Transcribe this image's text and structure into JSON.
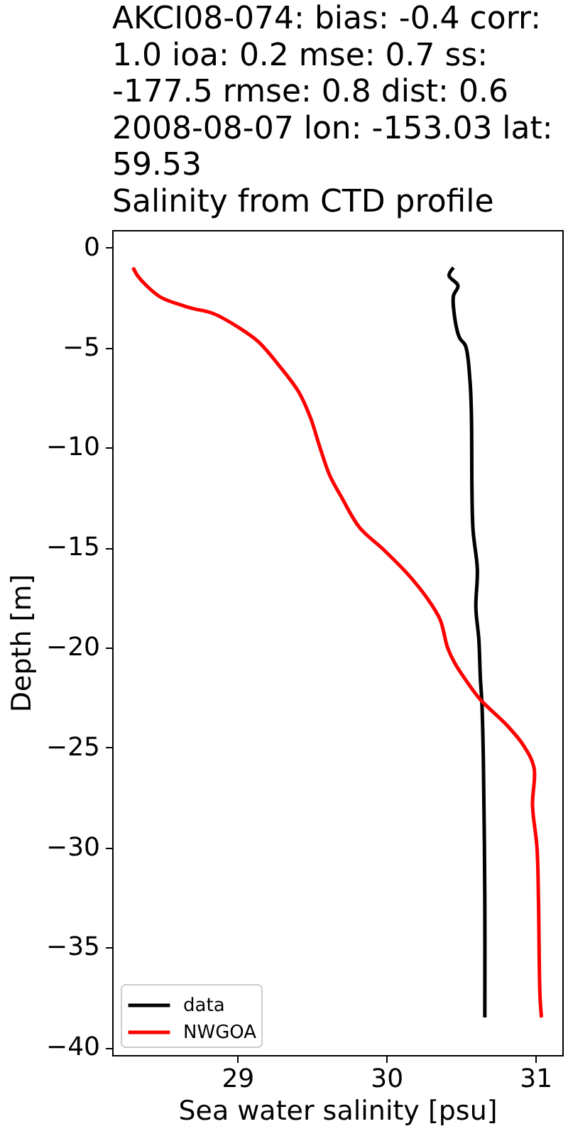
{
  "chart_data": {
    "type": "line",
    "title": "AKCI08-074: bias: -0.4  corr:\n1.0  ioa: 0.2  mse: 0.7  ss:\n-177.5  rmse: 0.8  dist: 0.6\n2008-08-07 lon: -153.03 lat:\n59.53\nSalinity from CTD profile",
    "xlabel": "Sea water salinity [psu]",
    "ylabel": "Depth [m]",
    "series": [
      {
        "name": "data",
        "color": "#000000",
        "x": [
          30.45,
          30.42,
          30.48,
          30.45,
          30.45,
          30.49,
          30.53,
          30.56,
          30.57,
          30.58,
          30.61,
          30.6,
          30.62,
          30.63,
          30.64,
          30.65,
          30.66,
          30.66
        ],
        "values": [
          -1.0,
          -1.4,
          -1.9,
          -2.4,
          -3.0,
          -4.5,
          -4.9,
          -6.6,
          -8.3,
          -14.0,
          -16.1,
          -18.0,
          -19.6,
          -21.5,
          -22.7,
          -25.5,
          -32.6,
          -38.5
        ]
      },
      {
        "name": "NWGOA",
        "color": "#ff0000",
        "x": [
          28.3,
          28.33,
          28.39,
          28.49,
          28.68,
          28.84,
          29.01,
          29.14,
          29.28,
          29.41,
          29.49,
          29.55,
          29.62,
          29.7,
          29.82,
          29.98,
          30.14,
          30.27,
          30.36,
          30.41,
          30.46,
          30.53,
          30.63,
          30.81,
          30.92,
          30.99,
          30.98,
          31.01,
          31.02,
          31.03,
          31.04
        ],
        "values": [
          -1.0,
          -1.4,
          -1.9,
          -2.5,
          -3.0,
          -3.3,
          -4.0,
          -4.7,
          -5.9,
          -7.2,
          -8.5,
          -9.9,
          -11.4,
          -12.5,
          -14.0,
          -15.1,
          -16.3,
          -17.5,
          -18.6,
          -20.0,
          -20.8,
          -21.6,
          -22.6,
          -23.9,
          -24.9,
          -26.0,
          -27.9,
          -30.0,
          -32.6,
          -37.4,
          -38.5
        ]
      }
    ],
    "xlim": [
      28.16,
      31.18
    ],
    "ylim": [
      -40.38,
      0.88
    ],
    "xticks": [
      29,
      30,
      31
    ],
    "yticks": [
      0,
      -5,
      -10,
      -15,
      -20,
      -25,
      -30,
      -35,
      -40
    ],
    "grid": false,
    "legend": "bottom left"
  }
}
